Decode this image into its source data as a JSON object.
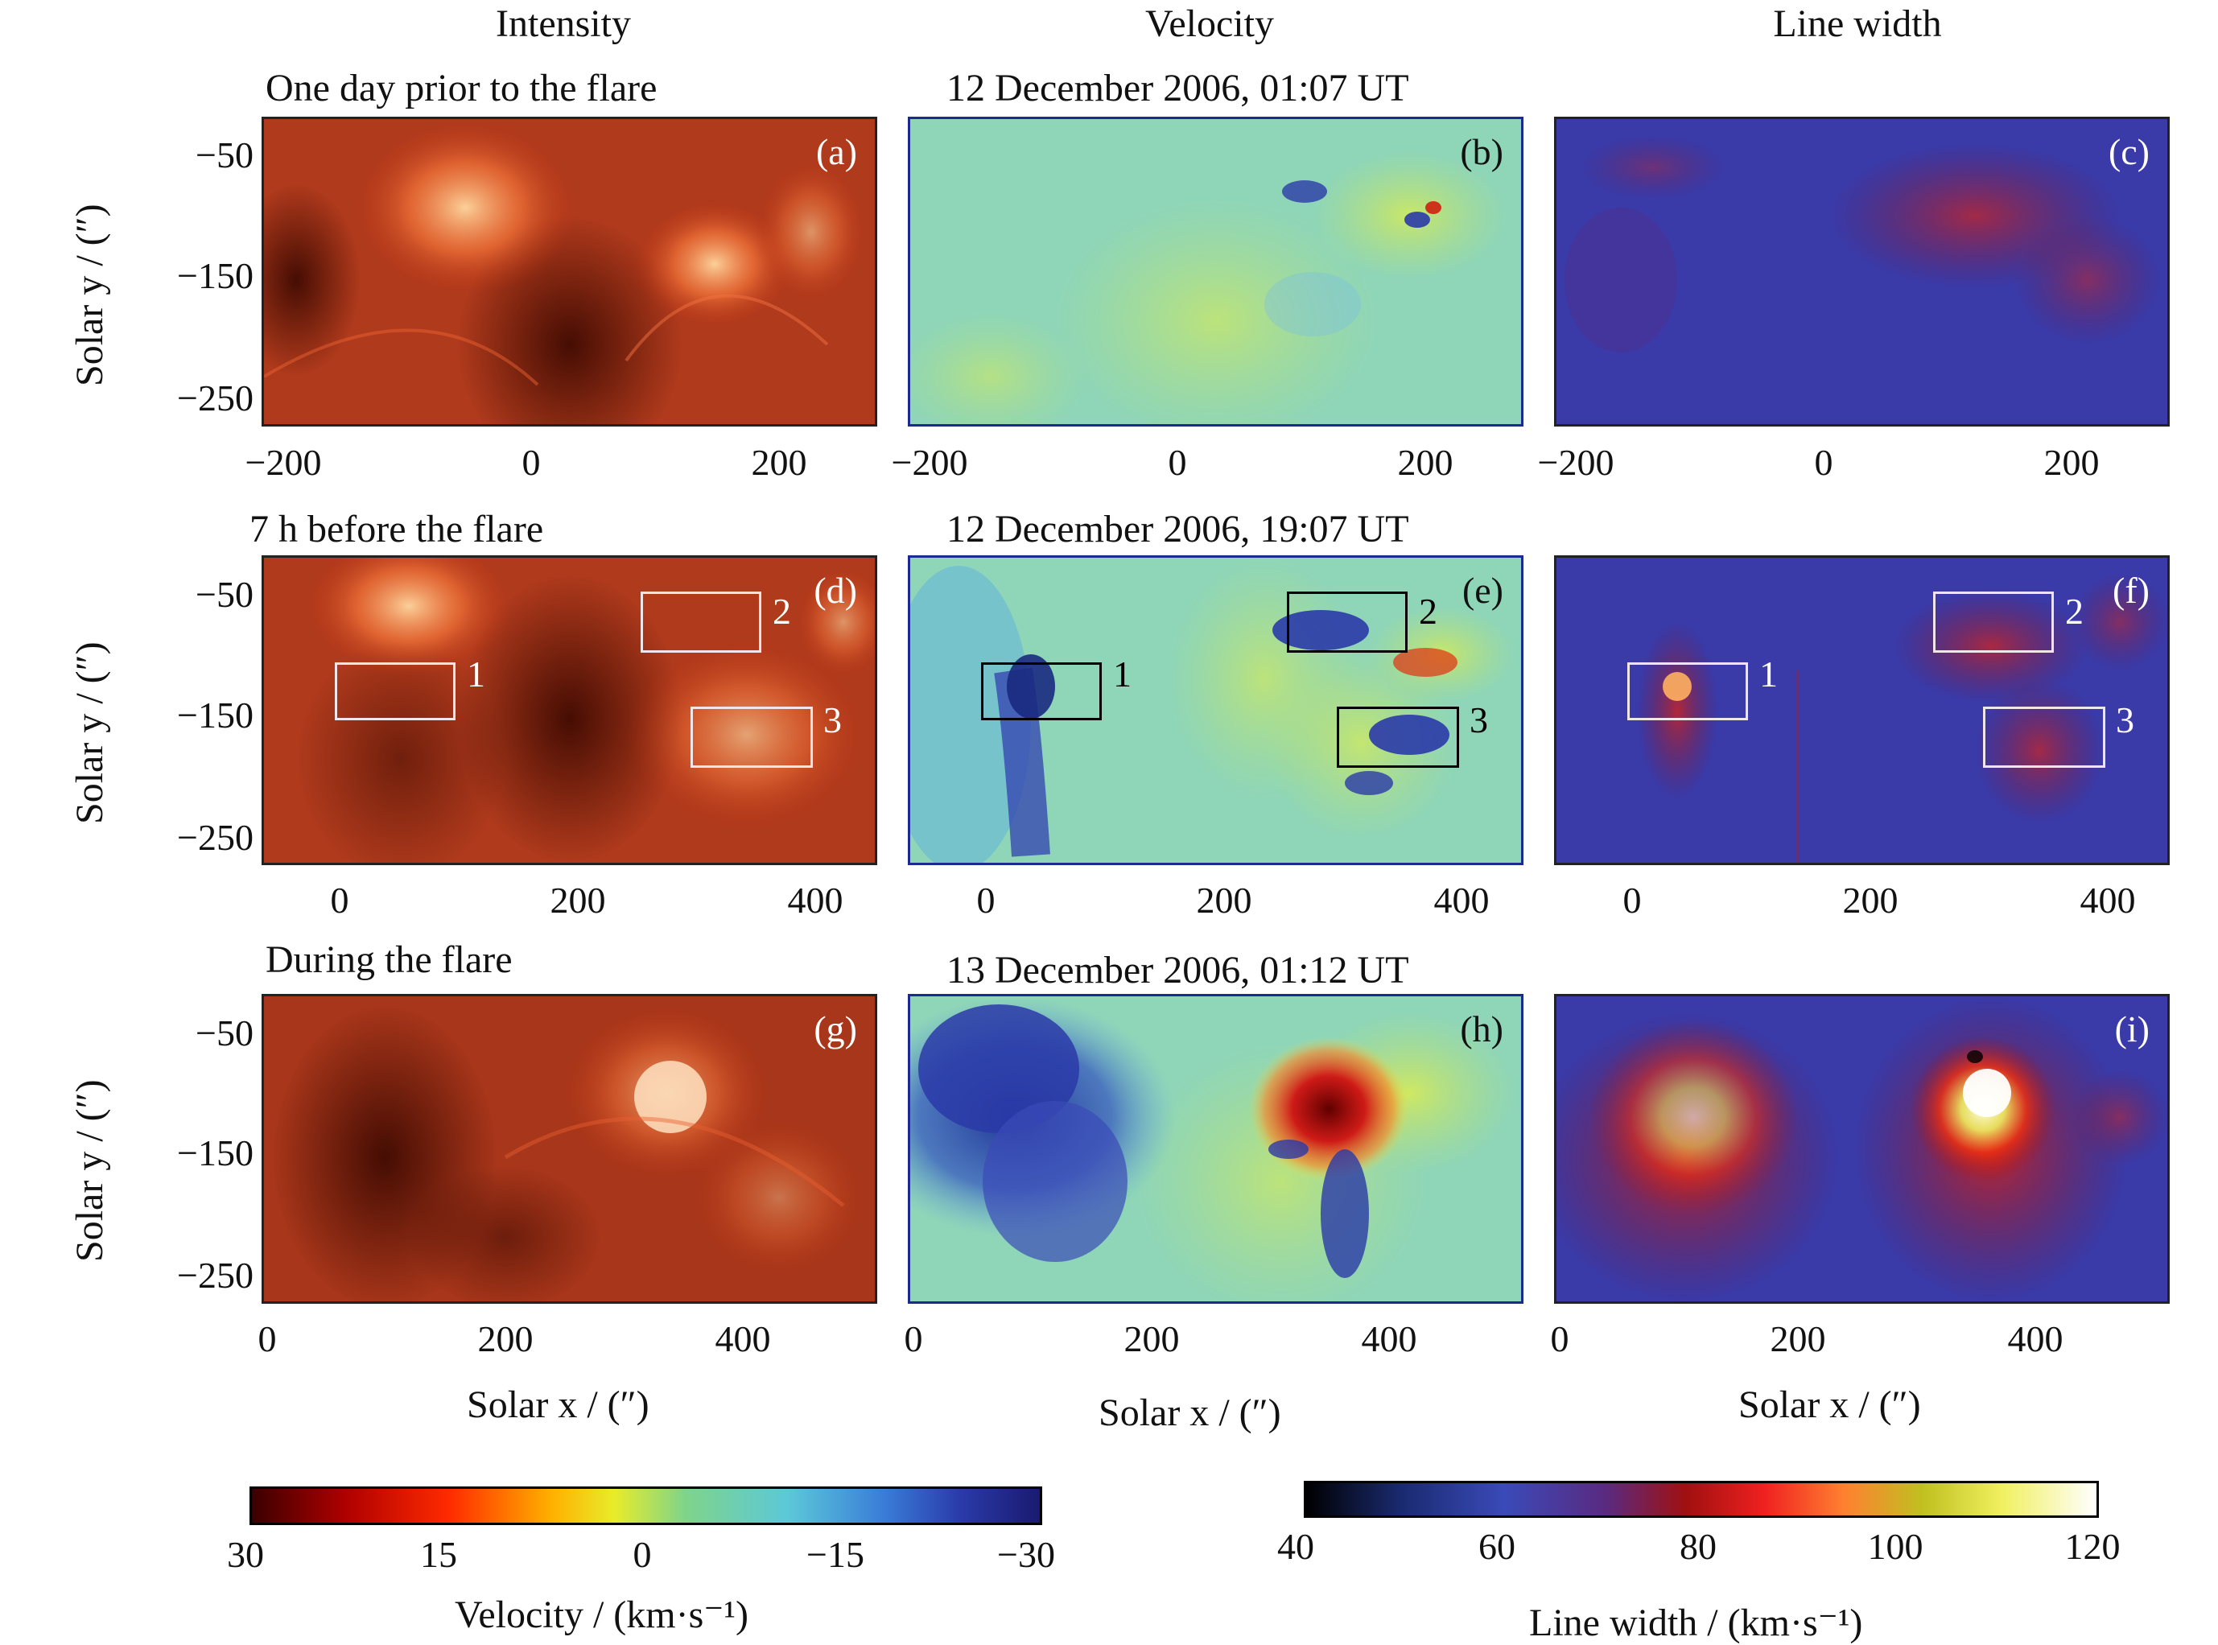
{
  "columns": {
    "intensity": "Intensity",
    "velocity": "Velocity",
    "line_width": "Line width"
  },
  "rows": [
    {
      "caption": "One day prior to the flare",
      "timestamp": "12 December 2006,  01:07 UT",
      "panels": [
        "(a)",
        "(b)",
        "(c)"
      ]
    },
    {
      "caption": "7 h before the flare",
      "timestamp": "12 December 2006,  19:07 UT",
      "panels": [
        "(d)",
        "(e)",
        "(f)"
      ]
    },
    {
      "caption": "During the flare",
      "timestamp": "13 December 2006,  01:12 UT",
      "panels": [
        "(g)",
        "(h)",
        "(i)"
      ]
    }
  ],
  "axes": {
    "ylabel": "Solar y / (″)",
    "xlabel": "Solar x / (″)",
    "yticks": [
      "−50",
      "−150",
      "−250"
    ],
    "xticks_row1": [
      "−200",
      "0",
      "200"
    ],
    "xticks_row2": [
      "0",
      "200",
      "400"
    ],
    "xticks_row3": [
      "0",
      "200",
      "400"
    ]
  },
  "boxes": [
    "1",
    "2",
    "3"
  ],
  "velocity_colorbar": {
    "ticks": [
      "30",
      "15",
      "0",
      "−15",
      "−30"
    ],
    "title": "Velocity / (km·s⁻¹)"
  },
  "linewidth_colorbar": {
    "ticks": [
      "40",
      "60",
      "80",
      "100",
      "120"
    ],
    "title": "Line width / (km·s⁻¹)"
  },
  "colors": {
    "intensity_base": "#b8381c",
    "velocity_base": "#7fd0c8",
    "linewidth_base": "#3a3aa0"
  }
}
